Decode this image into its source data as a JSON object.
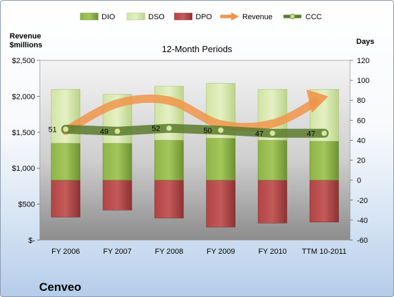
{
  "company": "Cenveo",
  "chart_data": {
    "type": "bar",
    "title": "12-Month Periods",
    "ylabel_left": "Revenue $millions",
    "ylabel_right": "Days",
    "categories": [
      "FY 2006",
      "FY 2007",
      "FY 2008",
      "FY 2009",
      "FY 2010",
      "TTM 10-2011"
    ],
    "left_axis": {
      "ylim": [
        0,
        2500
      ],
      "ticks": [
        0,
        500,
        1000,
        1500,
        2000,
        2500
      ],
      "tick_labels": [
        "$-",
        "$500",
        "$1,000",
        "$1,500",
        "$2,000",
        "$2,500"
      ]
    },
    "right_axis": {
      "ylim": [
        -60,
        120
      ],
      "ticks": [
        -60,
        -40,
        -20,
        0,
        20,
        40,
        60,
        80,
        100,
        120
      ],
      "tick_labels": [
        "-60",
        "-40",
        "-20",
        "0",
        "20",
        "40",
        "60",
        "80",
        "100",
        "120"
      ]
    },
    "legend_position": "top",
    "grid": false,
    "series": [
      {
        "name": "DIO",
        "axis": "right",
        "type": "stacked-bar",
        "color": "#8fb446",
        "values": [
          37,
          37,
          40,
          42,
          40,
          39
        ]
      },
      {
        "name": "DSO",
        "axis": "right",
        "type": "stacked-bar",
        "color": "#d4e6a8",
        "values": [
          54,
          49,
          54,
          55,
          51,
          52
        ]
      },
      {
        "name": "DPO",
        "axis": "right",
        "type": "negative-bar",
        "color": "#b84a4a",
        "values": [
          -37,
          -30,
          -38,
          -47,
          -43,
          -42
        ]
      },
      {
        "name": "Revenue",
        "axis": "left",
        "type": "arrow-line",
        "color": "#f0954a",
        "values": [
          1520,
          1900,
          1940,
          1610,
          1620,
          1980
        ]
      },
      {
        "name": "CCC",
        "axis": "right",
        "type": "line",
        "color": "#5a7a2e",
        "values": [
          51,
          49,
          52,
          50,
          47,
          47
        ]
      }
    ],
    "data_labels": {
      "series": "CCC",
      "labels": [
        "51",
        "49",
        "52",
        "50",
        "47",
        "47"
      ]
    }
  }
}
